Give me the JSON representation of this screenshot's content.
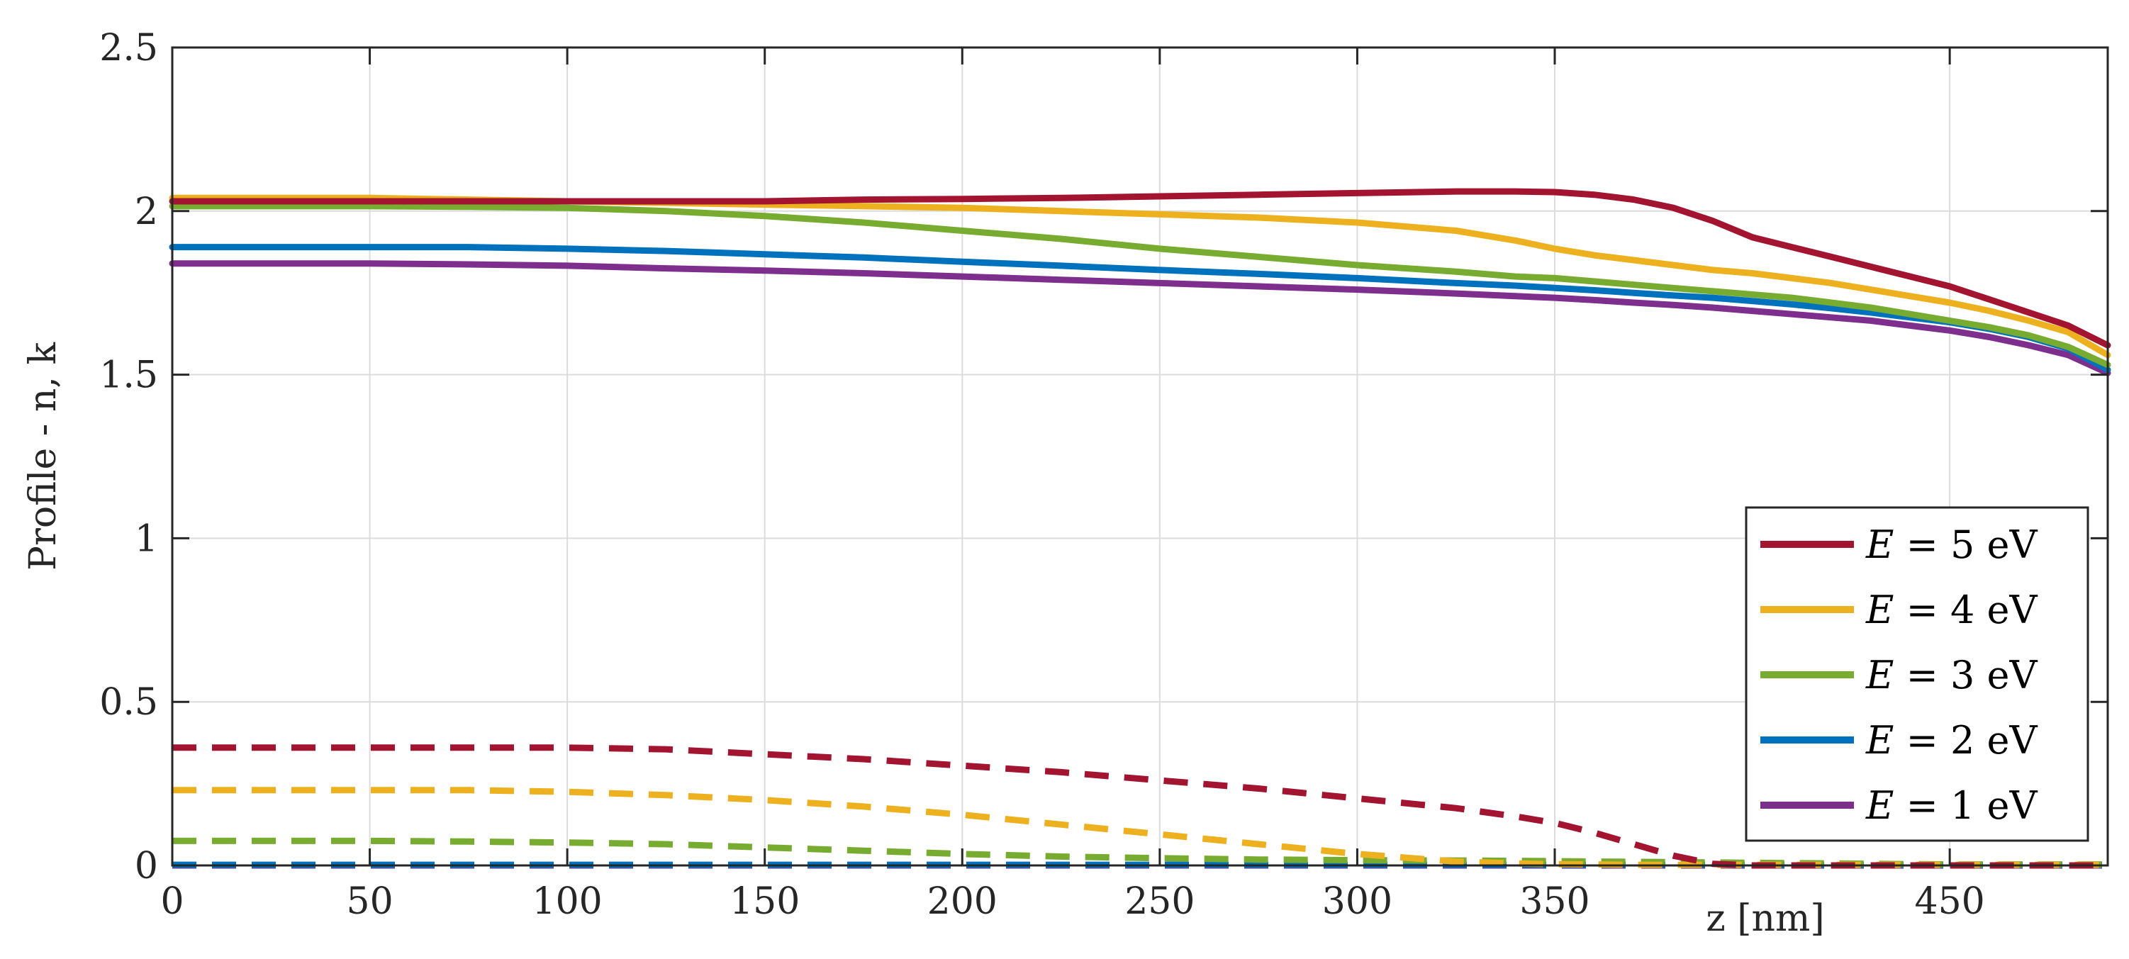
{
  "chart_data": {
    "type": "line",
    "title": "",
    "xlabel": "z [nm]",
    "ylabel": "Profile - n, k",
    "xlim": [
      0,
      490
    ],
    "ylim": [
      0,
      2.5
    ],
    "x_ticks": [
      "0",
      "50",
      "100",
      "150",
      "200",
      "250",
      "300",
      "350",
      "450"
    ],
    "x_tick_values": [
      0,
      50,
      100,
      150,
      200,
      250,
      300,
      350,
      450
    ],
    "y_ticks": [
      "0",
      "0.5",
      "1",
      "1.5",
      "2",
      "2.5"
    ],
    "y_tick_values": [
      0,
      0.5,
      1,
      1.5,
      2,
      2.5
    ],
    "grid": true,
    "legend_position": "bottom-right",
    "x": [
      0,
      25,
      50,
      75,
      100,
      125,
      150,
      175,
      200,
      225,
      250,
      275,
      300,
      325,
      340,
      350,
      360,
      370,
      380,
      390,
      400,
      410,
      420,
      430,
      440,
      450,
      460,
      470,
      480,
      490
    ],
    "series": [
      {
        "legend_symbol": "E",
        "legend_value": "5 eV",
        "color": "#A2142F",
        "style": "solid",
        "n": [
          2.03,
          2.03,
          2.03,
          2.03,
          2.03,
          2.03,
          2.03,
          2.035,
          2.037,
          2.04,
          2.045,
          2.05,
          2.055,
          2.06,
          2.06,
          2.058,
          2.05,
          2.035,
          2.01,
          1.97,
          1.92,
          1.89,
          1.86,
          1.83,
          1.8,
          1.77,
          1.73,
          1.69,
          1.65,
          1.59
        ],
        "k": [
          0.36,
          0.36,
          0.36,
          0.36,
          0.36,
          0.355,
          0.34,
          0.325,
          0.305,
          0.285,
          0.26,
          0.235,
          0.205,
          0.175,
          0.15,
          0.13,
          0.1,
          0.065,
          0.03,
          0.005,
          0.0,
          0.0,
          0.0,
          0.0,
          0.0,
          0.0,
          0.0,
          0.0,
          0.0,
          0.0
        ]
      },
      {
        "legend_symbol": "E",
        "legend_value": "4 eV",
        "color": "#EDB120",
        "style": "solid",
        "n": [
          2.04,
          2.04,
          2.04,
          2.035,
          2.03,
          2.025,
          2.02,
          2.015,
          2.01,
          2.0,
          1.99,
          1.98,
          1.965,
          1.94,
          1.91,
          1.885,
          1.865,
          1.85,
          1.835,
          1.82,
          1.81,
          1.795,
          1.78,
          1.76,
          1.74,
          1.72,
          1.695,
          1.665,
          1.63,
          1.56
        ],
        "k": [
          0.23,
          0.23,
          0.23,
          0.23,
          0.225,
          0.215,
          0.2,
          0.18,
          0.155,
          0.125,
          0.095,
          0.065,
          0.035,
          0.012,
          0.006,
          0.004,
          0.003,
          0.002,
          0.002,
          0.002,
          0.002,
          0.002,
          0.002,
          0.002,
          0.002,
          0.002,
          0.002,
          0.002,
          0.002,
          0.002
        ]
      },
      {
        "legend_symbol": "E",
        "legend_value": "3 eV",
        "color": "#77AC30",
        "style": "solid",
        "n": [
          2.015,
          2.015,
          2.015,
          2.013,
          2.01,
          2.0,
          1.985,
          1.965,
          1.94,
          1.915,
          1.885,
          1.86,
          1.835,
          1.815,
          1.8,
          1.795,
          1.785,
          1.775,
          1.765,
          1.755,
          1.745,
          1.735,
          1.72,
          1.705,
          1.685,
          1.665,
          1.645,
          1.62,
          1.585,
          1.53
        ],
        "k": [
          0.075,
          0.075,
          0.075,
          0.073,
          0.07,
          0.065,
          0.055,
          0.045,
          0.035,
          0.027,
          0.022,
          0.018,
          0.016,
          0.015,
          0.014,
          0.013,
          0.012,
          0.011,
          0.01,
          0.009,
          0.008,
          0.007,
          0.006,
          0.005,
          0.004,
          0.003,
          0.003,
          0.003,
          0.003,
          0.003
        ]
      },
      {
        "legend_symbol": "E",
        "legend_value": "2 eV",
        "color": "#0072BD",
        "style": "solid",
        "n": [
          1.89,
          1.89,
          1.89,
          1.89,
          1.885,
          1.878,
          1.868,
          1.858,
          1.845,
          1.833,
          1.82,
          1.808,
          1.795,
          1.78,
          1.772,
          1.765,
          1.758,
          1.75,
          1.742,
          1.735,
          1.725,
          1.715,
          1.703,
          1.69,
          1.675,
          1.66,
          1.64,
          1.615,
          1.58,
          1.515
        ],
        "k": [
          0.002,
          0.002,
          0.002,
          0.002,
          0.002,
          0.002,
          0.002,
          0.002,
          0.002,
          0.002,
          0.002,
          0.002,
          0.002,
          0.002,
          0.002,
          0.002,
          0.002,
          0.002,
          0.002,
          0.002,
          0.002,
          0.002,
          0.002,
          0.002,
          0.002,
          0.002,
          0.002,
          0.002,
          0.002,
          0.002
        ]
      },
      {
        "legend_symbol": "E",
        "legend_value": "1 eV",
        "color": "#7E2F8E",
        "style": "solid",
        "n": [
          1.84,
          1.84,
          1.84,
          1.837,
          1.833,
          1.825,
          1.818,
          1.81,
          1.8,
          1.79,
          1.78,
          1.77,
          1.76,
          1.748,
          1.74,
          1.735,
          1.728,
          1.72,
          1.713,
          1.705,
          1.695,
          1.685,
          1.675,
          1.665,
          1.65,
          1.635,
          1.615,
          1.59,
          1.56,
          1.505
        ],
        "k": [
          0.0,
          0.0,
          0.0,
          0.0,
          0.0,
          0.0,
          0.0,
          0.0,
          0.0,
          0.0,
          0.0,
          0.0,
          0.0,
          0.0,
          0.0,
          0.0,
          0.0,
          0.0,
          0.0,
          0.0,
          0.0,
          0.0,
          0.0,
          0.0,
          0.0,
          0.0,
          0.0,
          0.0,
          0.0,
          0.0
        ]
      }
    ]
  }
}
